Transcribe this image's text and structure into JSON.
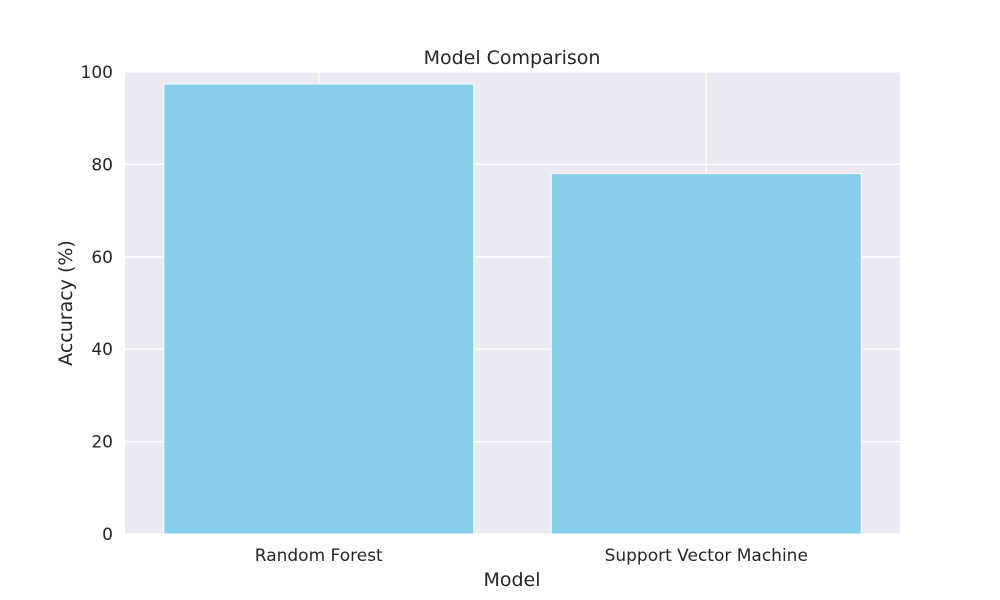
{
  "chart_data": {
    "type": "bar",
    "title": "Model Comparison",
    "xlabel": "Model",
    "ylabel": "Accuracy (%)",
    "categories": [
      "Random Forest",
      "Support Vector Machine"
    ],
    "values": [
      97.4,
      78.0
    ],
    "ylim": [
      0,
      100
    ],
    "yticks": [
      "0",
      "20",
      "40",
      "60",
      "80",
      "100"
    ],
    "grid": true,
    "legend": "none",
    "colors": {
      "bar": "#87CEEB",
      "plot_background": "#EAEAF2",
      "grid": "#FFFFFF",
      "text": "#262626"
    }
  }
}
